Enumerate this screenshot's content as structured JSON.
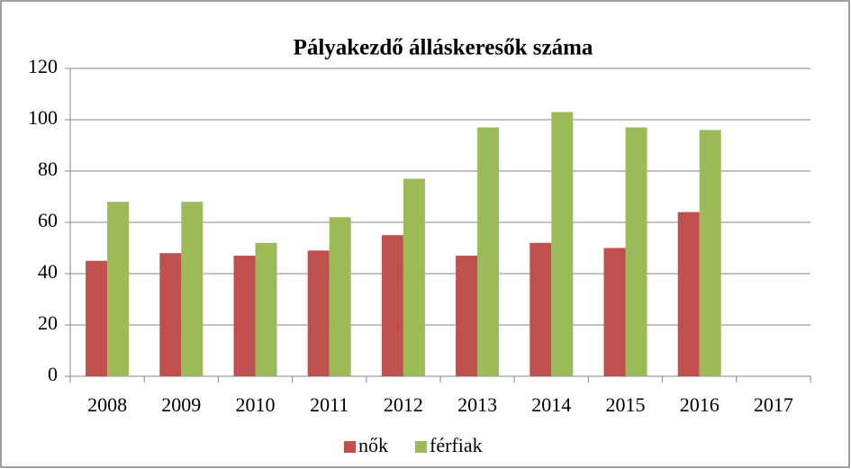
{
  "chart_data": {
    "type": "bar",
    "title": "Pályakezdő álláskeresők száma",
    "categories": [
      "2008",
      "2009",
      "2010",
      "2011",
      "2012",
      "2013",
      "2014",
      "2015",
      "2016",
      "2017"
    ],
    "series": [
      {
        "name": "nők",
        "color": "#c0504d",
        "values": [
          45,
          48,
          47,
          49,
          55,
          47,
          52,
          50,
          64,
          null
        ]
      },
      {
        "name": "férfiak",
        "color": "#9bbb59",
        "values": [
          68,
          68,
          52,
          62,
          77,
          97,
          103,
          97,
          96,
          null
        ]
      }
    ],
    "ylim": [
      0,
      120
    ],
    "yticks": [
      0,
      20,
      40,
      60,
      80,
      100,
      120
    ],
    "grid": true,
    "legend": "bottom"
  }
}
